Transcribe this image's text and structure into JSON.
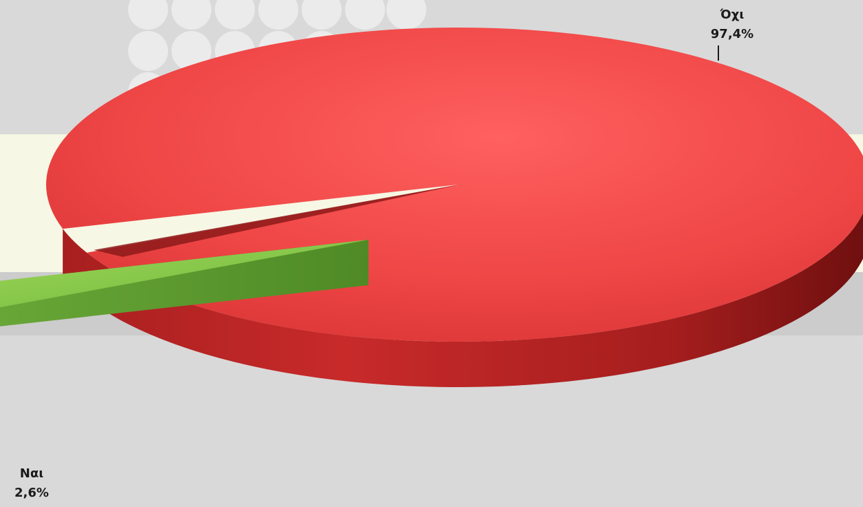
{
  "chart_data": {
    "type": "pie",
    "style": "3d-exploded",
    "slices": [
      {
        "label": "Όχι",
        "value": 97.4,
        "value_label": "97,4%",
        "color": "#ec3b3b"
      },
      {
        "label": "Ναι",
        "value": 2.6,
        "value_label": "2,6%",
        "color": "#7cc444"
      }
    ],
    "legend": "none",
    "background_colors": {
      "base": "#d9d9d9",
      "band_light": "#f6f7e4",
      "band_mid": "#cfcfcf",
      "dots": "#e9e9e9"
    }
  }
}
